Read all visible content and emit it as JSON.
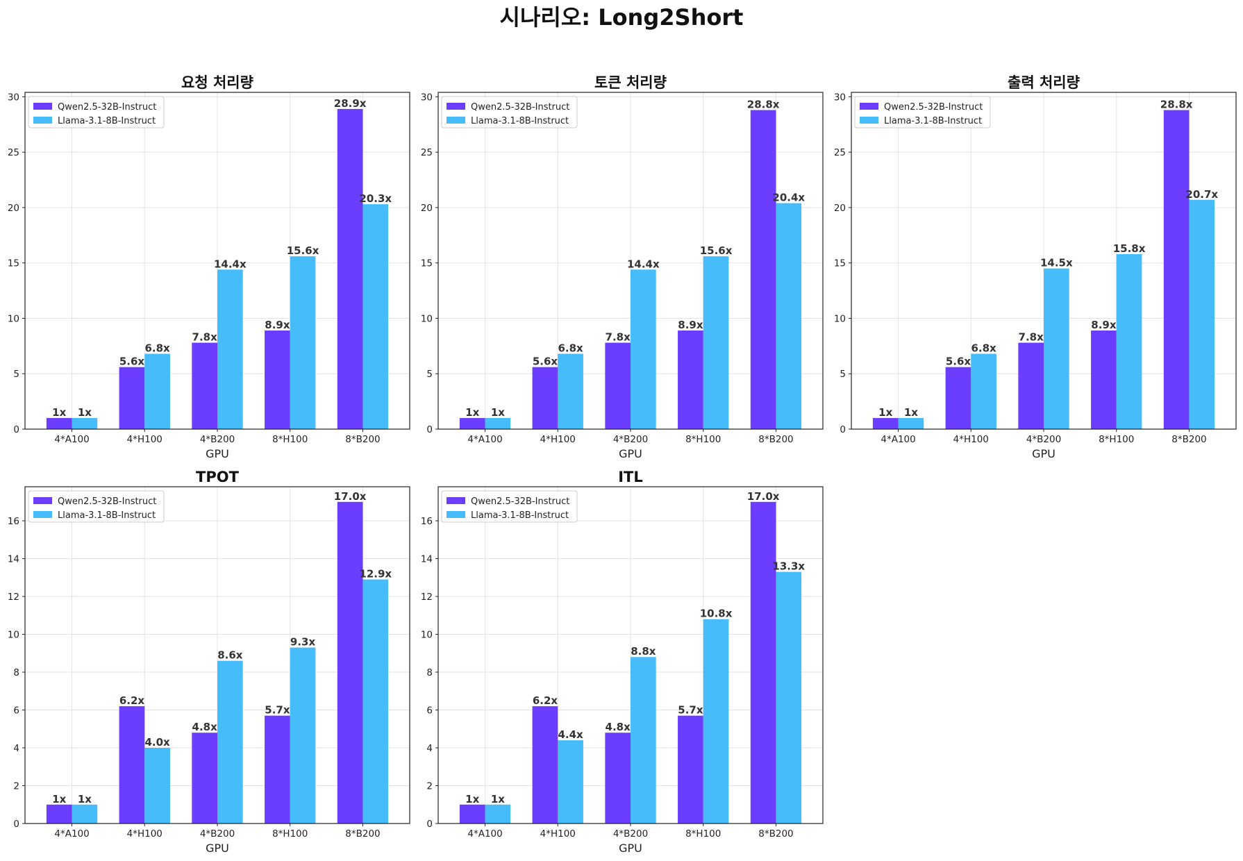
{
  "suptitle": "시나리오: Long2Short",
  "colors": {
    "series_1": "#6a3dff",
    "series_2": "#47bcfa"
  },
  "chart_data": [
    {
      "type": "bar",
      "title": "요청 처리량",
      "xlabel": "GPU",
      "ylabel": "",
      "categories": [
        "4*A100",
        "4*H100",
        "4*B200",
        "8*H100",
        "8*B200"
      ],
      "ylim": [
        0,
        30.4
      ],
      "yticks": [
        0,
        5,
        10,
        15,
        20,
        25,
        30
      ],
      "grid": true,
      "legend": "top-left",
      "series": [
        {
          "name": "Qwen2.5-32B-Instruct",
          "values": [
            1.0,
            5.6,
            7.8,
            8.9,
            28.9
          ],
          "labels": [
            "1x",
            "5.6x",
            "7.8x",
            "8.9x",
            "28.9x"
          ]
        },
        {
          "name": "Llama-3.1-8B-Instruct",
          "values": [
            1.0,
            6.8,
            14.4,
            15.6,
            20.3
          ],
          "labels": [
            "1x",
            "6.8x",
            "14.4x",
            "15.6x",
            "20.3x"
          ]
        }
      ]
    },
    {
      "type": "bar",
      "title": "토큰 처리량",
      "xlabel": "GPU",
      "ylabel": "",
      "categories": [
        "4*A100",
        "4*H100",
        "4*B200",
        "8*H100",
        "8*B200"
      ],
      "ylim": [
        0,
        30.4
      ],
      "yticks": [
        0,
        5,
        10,
        15,
        20,
        25,
        30
      ],
      "grid": true,
      "legend": "top-left",
      "series": [
        {
          "name": "Qwen2.5-32B-Instruct",
          "values": [
            1.0,
            5.6,
            7.8,
            8.9,
            28.8
          ],
          "labels": [
            "1x",
            "5.6x",
            "7.8x",
            "8.9x",
            "28.8x"
          ]
        },
        {
          "name": "Llama-3.1-8B-Instruct",
          "values": [
            1.0,
            6.8,
            14.4,
            15.6,
            20.4
          ],
          "labels": [
            "1x",
            "6.8x",
            "14.4x",
            "15.6x",
            "20.4x"
          ]
        }
      ]
    },
    {
      "type": "bar",
      "title": "출력 처리량",
      "xlabel": "GPU",
      "ylabel": "",
      "categories": [
        "4*A100",
        "4*H100",
        "4*B200",
        "8*H100",
        "8*B200"
      ],
      "ylim": [
        0,
        30.4
      ],
      "yticks": [
        0,
        5,
        10,
        15,
        20,
        25,
        30
      ],
      "grid": true,
      "legend": "top-left",
      "series": [
        {
          "name": "Qwen2.5-32B-Instruct",
          "values": [
            1.0,
            5.6,
            7.8,
            8.9,
            28.8
          ],
          "labels": [
            "1x",
            "5.6x",
            "7.8x",
            "8.9x",
            "28.8x"
          ]
        },
        {
          "name": "Llama-3.1-8B-Instruct",
          "values": [
            1.0,
            6.8,
            14.5,
            15.8,
            20.7
          ],
          "labels": [
            "1x",
            "6.8x",
            "14.5x",
            "15.8x",
            "20.7x"
          ]
        }
      ]
    },
    {
      "type": "bar",
      "title": "TPOT",
      "xlabel": "GPU",
      "ylabel": "",
      "categories": [
        "4*A100",
        "4*H100",
        "4*B200",
        "8*H100",
        "8*B200"
      ],
      "ylim": [
        0,
        17.8
      ],
      "yticks": [
        0,
        2,
        4,
        6,
        8,
        10,
        12,
        14,
        16
      ],
      "grid": true,
      "legend": "top-left",
      "series": [
        {
          "name": "Qwen2.5-32B-Instruct",
          "values": [
            1.0,
            6.2,
            4.8,
            5.7,
            17.0
          ],
          "labels": [
            "1x",
            "6.2x",
            "4.8x",
            "5.7x",
            "17.0x"
          ]
        },
        {
          "name": "Llama-3.1-8B-Instruct",
          "values": [
            1.0,
            4.0,
            8.6,
            9.3,
            12.9
          ],
          "labels": [
            "1x",
            "4.0x",
            "8.6x",
            "9.3x",
            "12.9x"
          ]
        }
      ]
    },
    {
      "type": "bar",
      "title": "ITL",
      "xlabel": "GPU",
      "ylabel": "",
      "categories": [
        "4*A100",
        "4*H100",
        "4*B200",
        "8*H100",
        "8*B200"
      ],
      "ylim": [
        0,
        17.8
      ],
      "yticks": [
        0,
        2,
        4,
        6,
        8,
        10,
        12,
        14,
        16
      ],
      "grid": true,
      "legend": "top-left",
      "series": [
        {
          "name": "Qwen2.5-32B-Instruct",
          "values": [
            1.0,
            6.2,
            4.8,
            5.7,
            17.0
          ],
          "labels": [
            "1x",
            "6.2x",
            "4.8x",
            "5.7x",
            "17.0x"
          ]
        },
        {
          "name": "Llama-3.1-8B-Instruct",
          "values": [
            1.0,
            4.4,
            8.8,
            10.8,
            13.3
          ],
          "labels": [
            "1x",
            "4.4x",
            "8.8x",
            "10.8x",
            "13.3x"
          ]
        }
      ]
    }
  ]
}
